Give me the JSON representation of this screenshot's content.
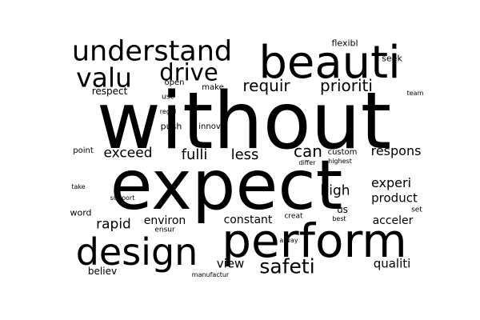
{
  "text_color": "#000000",
  "background": "#ffffff",
  "words": [
    "without",
    "expect",
    "perform",
    "beauti",
    "design",
    "understand",
    "valu",
    "drive",
    "safeti",
    "requir",
    "prioriti",
    "exceed",
    "fulli",
    "less",
    "can",
    "respons",
    "experi",
    "high",
    "product",
    "rapid",
    "environ",
    "constant",
    "acceler",
    "view",
    "qualiti",
    "believ",
    "respect",
    "flexibl",
    "seek",
    "push",
    "innov",
    "open",
    "make",
    "use",
    "team",
    "regul",
    "point",
    "custom",
    "differ",
    "highest",
    "take",
    "support",
    "word",
    "us",
    "set",
    "creat",
    "best",
    "ensur",
    "alway",
    "manufactur"
  ]
}
